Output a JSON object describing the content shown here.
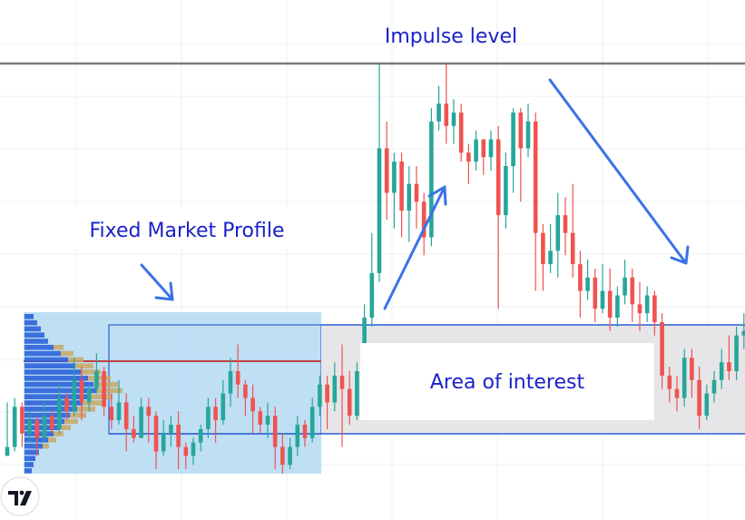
{
  "chart_data": {
    "type": "candlestick",
    "title": "",
    "xlabel": "",
    "ylabel": "",
    "grid": true,
    "colors": {
      "up": "#26a69a",
      "down": "#ef5350",
      "profile": "#2b63d9",
      "profile_box": "#a9d4f2",
      "annotation": "#1a22c8",
      "arrow": "#3b73e6"
    },
    "annotations": {
      "impulse_level": "Impulse level",
      "fixed_market_profile": "Fixed Market Profile",
      "area_of_interest": "Area of interest"
    },
    "candles": [
      [
        9,
        11,
        21,
        10
      ],
      [
        11,
        20,
        22,
        10
      ],
      [
        20,
        14,
        21,
        11
      ],
      [
        14,
        17,
        19,
        12
      ],
      [
        17,
        13,
        18,
        9
      ],
      [
        13,
        18,
        21,
        12
      ],
      [
        18,
        15,
        19,
        14
      ],
      [
        15,
        22,
        25,
        14
      ],
      [
        22,
        19,
        23,
        17
      ],
      [
        19,
        26,
        31,
        18
      ],
      [
        26,
        21,
        29,
        17
      ],
      [
        21,
        24,
        25,
        19
      ],
      [
        24,
        28,
        32,
        23
      ],
      [
        28,
        20,
        29,
        18
      ],
      [
        20,
        17,
        23,
        15
      ],
      [
        17,
        21,
        26,
        16
      ],
      [
        21,
        15,
        23,
        10
      ],
      [
        15,
        13,
        18,
        12
      ],
      [
        13,
        20,
        22,
        13
      ],
      [
        20,
        18,
        22,
        12
      ],
      [
        18,
        10,
        19,
        6
      ],
      [
        10,
        14,
        17,
        9
      ],
      [
        14,
        16,
        18,
        11
      ],
      [
        16,
        11,
        19,
        6
      ],
      [
        11,
        9,
        12,
        6
      ],
      [
        9,
        12,
        13,
        7
      ],
      [
        12,
        15,
        16,
        10
      ],
      [
        15,
        20,
        22,
        13
      ],
      [
        20,
        17,
        22,
        12
      ],
      [
        17,
        23,
        26,
        16
      ],
      [
        23,
        28,
        31,
        20
      ],
      [
        28,
        25,
        34,
        22
      ],
      [
        25,
        22,
        26,
        18
      ],
      [
        22,
        19,
        25,
        14
      ],
      [
        19,
        16,
        20,
        14
      ],
      [
        16,
        18,
        21,
        13
      ],
      [
        18,
        11,
        20,
        6
      ],
      [
        11,
        7,
        14,
        5
      ],
      [
        7,
        11,
        13,
        6
      ],
      [
        11,
        16,
        18,
        9
      ],
      [
        16,
        13,
        17,
        11
      ],
      [
        13,
        20,
        22,
        12
      ],
      [
        20,
        25,
        27,
        18
      ],
      [
        25,
        21,
        27,
        15
      ],
      [
        21,
        27,
        30,
        19
      ],
      [
        27,
        24,
        34,
        11
      ],
      [
        24,
        18,
        28,
        16
      ],
      [
        18,
        28,
        30,
        17
      ],
      [
        28,
        40,
        43,
        27
      ],
      [
        40,
        50,
        59,
        38
      ],
      [
        50,
        78,
        97,
        48
      ],
      [
        78,
        68,
        84,
        62
      ],
      [
        68,
        75,
        77,
        60
      ],
      [
        75,
        64,
        77,
        58
      ],
      [
        64,
        70,
        74,
        57
      ],
      [
        70,
        66,
        74,
        60
      ],
      [
        66,
        58,
        68,
        54
      ],
      [
        58,
        84,
        87,
        56
      ],
      [
        84,
        88,
        92,
        82
      ],
      [
        88,
        83,
        97,
        79
      ],
      [
        83,
        86,
        89,
        79
      ],
      [
        86,
        77,
        88,
        75
      ],
      [
        77,
        75,
        79,
        70
      ],
      [
        75,
        80,
        82,
        73
      ],
      [
        80,
        76,
        79,
        72
      ],
      [
        76,
        80,
        82,
        73
      ],
      [
        80,
        63,
        83,
        42
      ],
      [
        63,
        74,
        77,
        60
      ],
      [
        74,
        86,
        87,
        68
      ],
      [
        86,
        78,
        87,
        66
      ],
      [
        78,
        84,
        88,
        76
      ],
      [
        84,
        59,
        86,
        46
      ],
      [
        59,
        52,
        61,
        46
      ],
      [
        52,
        55,
        61,
        50
      ],
      [
        55,
        63,
        68,
        49
      ],
      [
        63,
        59,
        67,
        54
      ],
      [
        59,
        52,
        70,
        49
      ],
      [
        52,
        46,
        55,
        40
      ],
      [
        46,
        49,
        53,
        44
      ],
      [
        49,
        42,
        51,
        39
      ],
      [
        42,
        46,
        52,
        41
      ],
      [
        46,
        40,
        51,
        37
      ],
      [
        40,
        45,
        47,
        38
      ],
      [
        45,
        49,
        53,
        43
      ],
      [
        49,
        43,
        51,
        39
      ],
      [
        43,
        41,
        48,
        37
      ],
      [
        41,
        45,
        47,
        39
      ],
      [
        45,
        39,
        46,
        36
      ],
      [
        39,
        27,
        41,
        24
      ],
      [
        27,
        24,
        29,
        21
      ],
      [
        24,
        22,
        27,
        19
      ],
      [
        22,
        31,
        33,
        20
      ],
      [
        31,
        26,
        33,
        22
      ],
      [
        26,
        18,
        29,
        15
      ],
      [
        18,
        23,
        25,
        17
      ],
      [
        23,
        26,
        28,
        21
      ],
      [
        26,
        30,
        33,
        24
      ],
      [
        30,
        28,
        36,
        26
      ],
      [
        28,
        36,
        38,
        26
      ],
      [
        36,
        37,
        41,
        33
      ],
      [
        37,
        33,
        38,
        30
      ]
    ]
  }
}
